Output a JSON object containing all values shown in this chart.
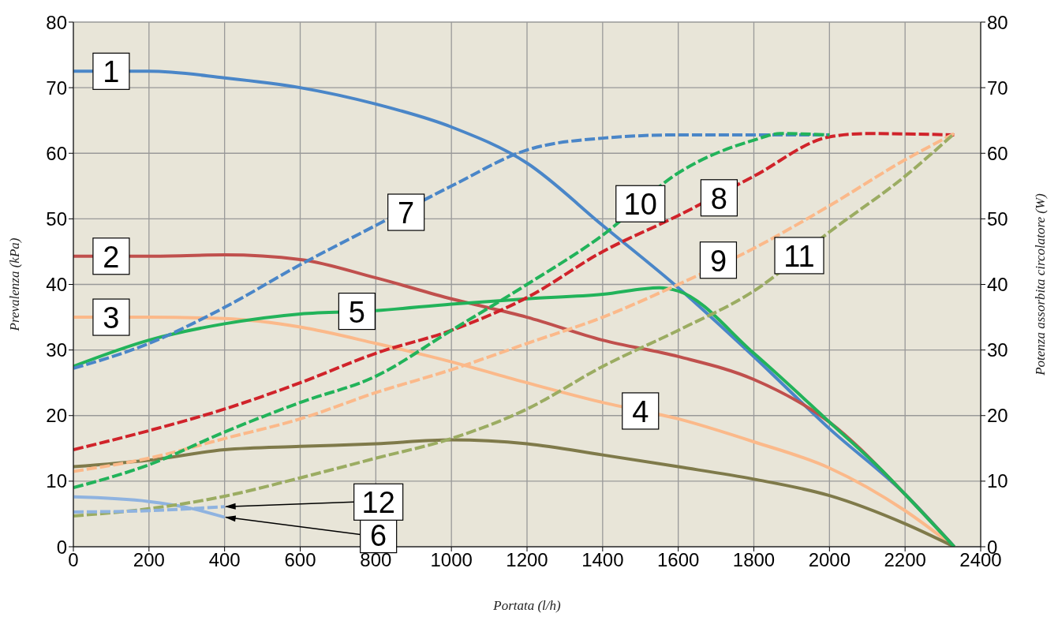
{
  "chart_data": {
    "type": "line",
    "xlabel": "Portata (l/h)",
    "ylabel": "Prevalenza (kPa)",
    "y2label": "Potenza assorbita circolatore (W)",
    "xlim": [
      0,
      2400
    ],
    "xticks": [
      0,
      200,
      400,
      600,
      800,
      1000,
      1200,
      1400,
      1600,
      1800,
      2000,
      2200,
      2400
    ],
    "ylim": [
      0,
      80
    ],
    "yticks": [
      0,
      10,
      20,
      30,
      40,
      50,
      60,
      70,
      80
    ],
    "y2lim": [
      0,
      80
    ],
    "y2ticks": [
      0,
      10,
      20,
      30,
      40,
      50,
      60,
      70,
      80
    ],
    "grid": true,
    "legend": false,
    "series": [
      {
        "color": "#4a86c8",
        "line_style": "solid",
        "x": [
          0,
          200,
          400,
          600,
          800,
          1000,
          1200,
          1400,
          1600,
          1800,
          2000,
          2200,
          2330
        ],
        "values": [
          72.5,
          72.5,
          71.5,
          70,
          67.5,
          64,
          58.5,
          49,
          39.5,
          29,
          18,
          8,
          0
        ]
      },
      {
        "color": "#c0504d",
        "line_style": "solid",
        "x": [
          0,
          200,
          400,
          600,
          800,
          1000,
          1200,
          1400,
          1600,
          1800,
          2000,
          2200,
          2330
        ],
        "values": [
          44.3,
          44.3,
          44.5,
          43.8,
          41,
          37.8,
          35,
          31.5,
          29,
          25.5,
          19,
          8,
          0
        ]
      },
      {
        "color": "#fbb98a",
        "line_style": "solid",
        "x": [
          0,
          200,
          400,
          600,
          800,
          1000,
          1200,
          1400,
          1600,
          1800,
          2000,
          2200,
          2330
        ],
        "values": [
          35,
          35,
          34.8,
          33.5,
          31,
          28.2,
          25,
          22,
          19.5,
          16,
          12,
          5.5,
          0
        ]
      },
      {
        "color": "#7f7a4a",
        "line_style": "solid",
        "x": [
          0,
          200,
          400,
          600,
          800,
          1000,
          1200,
          1400,
          1600,
          1800,
          2000,
          2200,
          2330
        ],
        "values": [
          12.2,
          13.2,
          14.8,
          15.3,
          15.7,
          16.3,
          15.7,
          14,
          12.2,
          10.3,
          7.8,
          3.5,
          0
        ]
      },
      {
        "color": "#22b35a",
        "line_style": "solid",
        "x": [
          0,
          200,
          400,
          600,
          800,
          1000,
          1200,
          1400,
          1550,
          1600,
          1800,
          2000,
          2150,
          2200,
          2330
        ],
        "values": [
          27.5,
          31.5,
          34,
          35.5,
          36,
          37,
          37.8,
          38.5,
          39.5,
          39,
          29.5,
          19,
          11,
          8,
          0
        ]
      },
      {
        "color": "#8fb3e0",
        "line_style": "solid",
        "x": [
          0,
          200,
          300,
          400
        ],
        "values": [
          7.6,
          6.9,
          6,
          4.5
        ]
      },
      {
        "color": "#4a86c8",
        "line_style": "dashed",
        "x": [
          0,
          200,
          400,
          600,
          800,
          1000,
          1200,
          1400,
          1600,
          1800,
          2000
        ],
        "values": [
          27.2,
          31,
          36.5,
          43,
          49,
          55,
          60.5,
          62.3,
          62.8,
          62.8,
          62.8
        ]
      },
      {
        "color": "#d0232a",
        "line_style": "dashed",
        "x": [
          0,
          200,
          400,
          600,
          800,
          1000,
          1200,
          1400,
          1600,
          1800,
          2000,
          2100,
          2330
        ],
        "values": [
          14.8,
          17.7,
          21,
          25,
          29.5,
          33,
          38,
          45,
          50.5,
          56.5,
          62.5,
          63,
          62.8
        ]
      },
      {
        "color": "#fbb98a",
        "line_style": "dashed",
        "x": [
          0,
          200,
          400,
          600,
          800,
          1000,
          1200,
          1400,
          1600,
          1800,
          2000,
          2200,
          2330
        ],
        "values": [
          11.5,
          13.5,
          16.5,
          19.5,
          23.5,
          27,
          31,
          35,
          40,
          45.5,
          52,
          59,
          63
        ]
      },
      {
        "color": "#22b35a",
        "line_style": "dashed",
        "x": [
          0,
          200,
          400,
          600,
          800,
          1000,
          1200,
          1400,
          1600,
          1800,
          1870,
          2000
        ],
        "values": [
          9,
          12.5,
          17.5,
          22,
          26,
          33,
          40,
          47.5,
          57,
          62,
          63,
          62.8
        ]
      },
      {
        "color": "#9bac62",
        "line_style": "dashed",
        "x": [
          0,
          200,
          400,
          600,
          800,
          1000,
          1200,
          1400,
          1600,
          1800,
          2000,
          2200,
          2330
        ],
        "values": [
          4.7,
          5.8,
          7.7,
          10.5,
          13.5,
          16.5,
          21,
          27.5,
          33,
          39,
          48,
          56.5,
          63
        ]
      },
      {
        "color": "#8fb3e0",
        "line_style": "dashed",
        "x": [
          0,
          200,
          400
        ],
        "values": [
          5.3,
          5.5,
          6.1
        ]
      }
    ],
    "annotations": [
      {
        "text": "1",
        "x": 100,
        "y": 72.5
      },
      {
        "text": "2",
        "x": 100,
        "y": 44.3
      },
      {
        "text": "3",
        "x": 100,
        "y": 35
      },
      {
        "text": "4",
        "x": 1500,
        "y": 20.7
      },
      {
        "text": "5",
        "x": 750,
        "y": 35.9
      },
      {
        "text": "6",
        "x": 400,
        "y": 4.5
      },
      {
        "text": "7",
        "x": 880,
        "y": 51
      },
      {
        "text": "8",
        "x": 1708,
        "y": 53.2
      },
      {
        "text": "9",
        "x": 1706,
        "y": 43.7
      },
      {
        "text": "10",
        "x": 1500,
        "y": 52.3
      },
      {
        "text": "11",
        "x": 1920,
        "y": 44.4
      },
      {
        "text": "12",
        "x": 400,
        "y": 6.1
      }
    ]
  }
}
